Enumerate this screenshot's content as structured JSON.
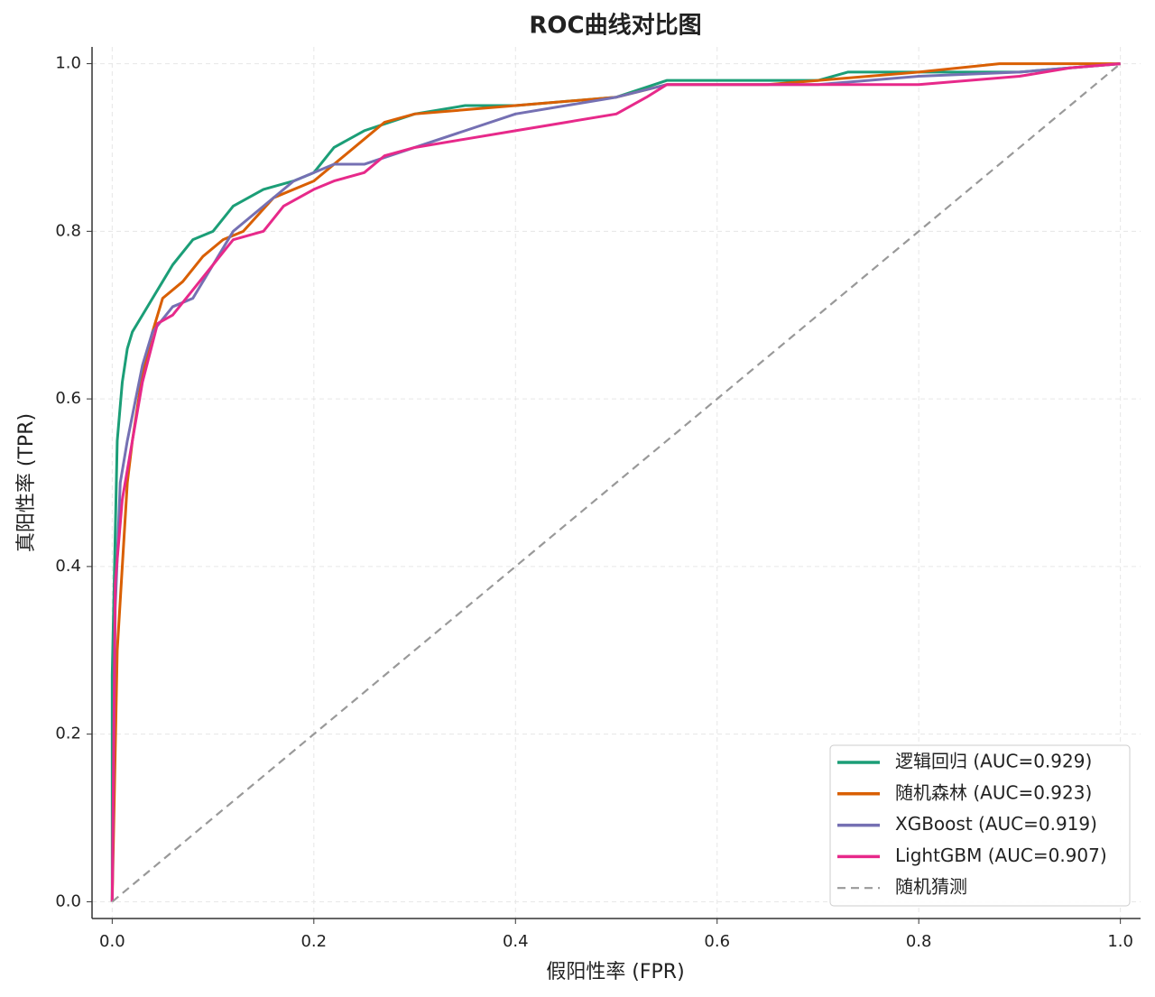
{
  "chart_data": {
    "type": "line",
    "title": "ROC曲线对比图",
    "x_label": "假阳性率 (FPR)",
    "y_label": "真阳性率 (TPR)",
    "xlim": [
      -0.02,
      1.02
    ],
    "ylim": [
      -0.02,
      1.02
    ],
    "xticks": [
      {
        "value": 0,
        "label": "0.0"
      },
      0.2,
      0.4,
      0.6,
      0.8,
      {
        "value": 1,
        "label": "1.0"
      }
    ],
    "yticks": [
      {
        "value": 0,
        "label": "0.0"
      },
      0.2,
      0.4,
      0.6,
      0.8,
      {
        "value": 1,
        "label": "1.0"
      }
    ],
    "grid": true,
    "legend": "lower right",
    "series": [
      {
        "name": "逻辑回归 (AUC=0.929)",
        "color": "#1b9e77",
        "linestyle": "solid",
        "x": [
          0,
          0,
          0.005,
          0.01,
          0.015,
          0.02,
          0.03,
          0.04,
          0.05,
          0.06,
          0.08,
          0.1,
          0.12,
          0.15,
          0.18,
          0.2,
          0.22,
          0.25,
          0.3,
          0.35,
          0.4,
          0.5,
          0.55,
          0.6,
          0.7,
          0.73,
          0.8,
          0.9,
          1.0
        ],
        "values": [
          0,
          0.27,
          0.55,
          0.62,
          0.66,
          0.68,
          0.7,
          0.72,
          0.74,
          0.76,
          0.79,
          0.8,
          0.83,
          0.85,
          0.86,
          0.87,
          0.9,
          0.92,
          0.94,
          0.95,
          0.95,
          0.96,
          0.98,
          0.98,
          0.98,
          0.99,
          0.99,
          0.99,
          1.0
        ]
      },
      {
        "name": "随机森林 (AUC=0.923)",
        "color": "#d95f02",
        "linestyle": "solid",
        "x": [
          0,
          0.005,
          0.01,
          0.015,
          0.02,
          0.03,
          0.04,
          0.05,
          0.07,
          0.09,
          0.11,
          0.13,
          0.16,
          0.2,
          0.22,
          0.25,
          0.27,
          0.3,
          0.35,
          0.4,
          0.5,
          0.55,
          0.65,
          0.8,
          0.88,
          1.0
        ],
        "values": [
          0,
          0.3,
          0.4,
          0.5,
          0.55,
          0.63,
          0.68,
          0.72,
          0.74,
          0.77,
          0.79,
          0.8,
          0.84,
          0.86,
          0.88,
          0.91,
          0.93,
          0.94,
          0.945,
          0.95,
          0.96,
          0.975,
          0.975,
          0.99,
          1.0,
          1.0
        ]
      },
      {
        "name": "XGBoost (AUC=0.919)",
        "color": "#7570b3",
        "linestyle": "solid",
        "x": [
          0,
          0.003,
          0.008,
          0.015,
          0.02,
          0.03,
          0.04,
          0.06,
          0.08,
          0.1,
          0.12,
          0.15,
          0.18,
          0.22,
          0.25,
          0.3,
          0.35,
          0.4,
          0.45,
          0.5,
          0.55,
          0.7,
          0.8,
          0.9,
          1.0
        ],
        "values": [
          0,
          0.35,
          0.5,
          0.55,
          0.58,
          0.64,
          0.68,
          0.71,
          0.72,
          0.76,
          0.8,
          0.83,
          0.86,
          0.88,
          0.88,
          0.9,
          0.92,
          0.94,
          0.95,
          0.96,
          0.975,
          0.975,
          0.985,
          0.99,
          1.0
        ]
      },
      {
        "name": "LightGBM (AUC=0.907)",
        "color": "#e7298a",
        "linestyle": "solid",
        "x": [
          0,
          0.003,
          0.01,
          0.02,
          0.03,
          0.045,
          0.06,
          0.08,
          0.1,
          0.12,
          0.15,
          0.17,
          0.2,
          0.22,
          0.25,
          0.27,
          0.3,
          0.35,
          0.4,
          0.45,
          0.5,
          0.53,
          0.55,
          0.7,
          0.8,
          0.9,
          0.95,
          1.0
        ],
        "values": [
          0,
          0.38,
          0.48,
          0.55,
          0.62,
          0.69,
          0.7,
          0.73,
          0.76,
          0.79,
          0.8,
          0.83,
          0.85,
          0.86,
          0.87,
          0.89,
          0.9,
          0.91,
          0.92,
          0.93,
          0.94,
          0.96,
          0.975,
          0.975,
          0.975,
          0.985,
          0.995,
          1.0
        ]
      },
      {
        "name": "随机猜测",
        "color": "#999999",
        "linestyle": "dashed",
        "x": [
          0,
          1
        ],
        "values": [
          0,
          1
        ]
      }
    ]
  }
}
